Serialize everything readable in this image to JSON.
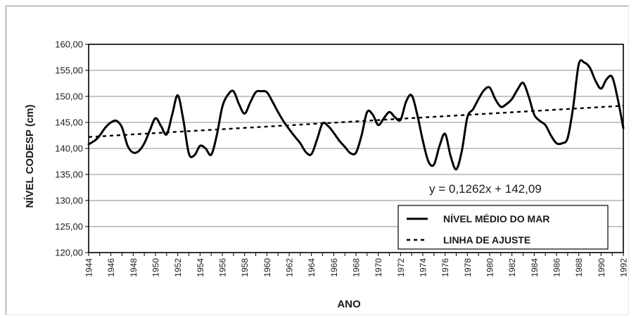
{
  "chart_data": {
    "type": "line",
    "title": "",
    "xlabel": "ANO",
    "ylabel": "NÍVEL CODESP  (cm)",
    "ylim": [
      120,
      160
    ],
    "xlim": [
      1944,
      1992
    ],
    "yticks": [
      "120,00",
      "125,00",
      "130,00",
      "135,00",
      "140,00",
      "145,00",
      "150,00",
      "155,00",
      "160,00"
    ],
    "xticks": [
      "1944",
      "1946",
      "1948",
      "1950",
      "1952",
      "1954",
      "1956",
      "1958",
      "1960",
      "1962",
      "1964",
      "1966",
      "1968",
      "1970",
      "1972",
      "1974",
      "1976",
      "1978",
      "1980",
      "1982",
      "1984",
      "1986",
      "1988",
      "1990",
      "1992"
    ],
    "grid": "horizontal",
    "legend_position": "bottom-right",
    "annotation": "y = 0,1262x + 142,09",
    "series": [
      {
        "name": "NÍVEL MÉDIO DO MAR",
        "style": "solid",
        "color": "#000000",
        "x": [
          1944,
          1944.6,
          1945,
          1945.5,
          1946,
          1946.5,
          1947,
          1947.5,
          1948,
          1948.5,
          1949,
          1949.5,
          1950,
          1950.5,
          1951,
          1951.5,
          1952,
          1952.5,
          1953,
          1953.5,
          1954,
          1954.5,
          1955,
          1955.5,
          1956,
          1956.5,
          1957,
          1957.5,
          1958,
          1958.5,
          1959,
          1959.5,
          1960,
          1960.5,
          1961,
          1961.5,
          1962,
          1962.5,
          1963,
          1963.5,
          1964,
          1964.5,
          1965,
          1965.5,
          1966,
          1966.5,
          1967,
          1967.5,
          1968,
          1968.5,
          1969,
          1969.5,
          1970,
          1970.5,
          1971,
          1971.5,
          1972,
          1972.5,
          1973,
          1973.5,
          1974,
          1974.5,
          1975,
          1975.5,
          1976,
          1976.5,
          1977,
          1977.5,
          1978,
          1978.5,
          1979,
          1979.5,
          1980,
          1980.5,
          1981,
          1981.5,
          1982,
          1982.5,
          1983,
          1983.5,
          1984,
          1984.5,
          1985,
          1985.5,
          1986,
          1986.5,
          1987,
          1987.5,
          1988,
          1988.5,
          1989,
          1989.5,
          1990,
          1990.5,
          1991,
          1991.5,
          1992
        ],
        "y": [
          140.8,
          141.6,
          142.5,
          144.0,
          145.0,
          145.3,
          144.0,
          140.5,
          139.2,
          139.5,
          141.0,
          143.5,
          145.8,
          144.3,
          142.7,
          146.5,
          150.2,
          145.5,
          139.0,
          138.7,
          140.5,
          140.0,
          138.8,
          142.5,
          148.0,
          150.3,
          151.0,
          148.5,
          146.7,
          148.8,
          150.8,
          151.0,
          150.8,
          149.0,
          147.0,
          145.2,
          143.7,
          142.3,
          141.0,
          139.3,
          138.9,
          141.7,
          144.8,
          144.3,
          143.0,
          141.5,
          140.3,
          139.1,
          139.2,
          142.5,
          147.0,
          146.5,
          144.5,
          145.8,
          147.0,
          146.0,
          145.5,
          149.0,
          150.2,
          146.5,
          141.5,
          137.5,
          136.9,
          140.5,
          142.8,
          138.5,
          136.0,
          139.5,
          146.0,
          147.5,
          149.5,
          151.2,
          151.7,
          149.5,
          148.0,
          148.5,
          149.5,
          151.3,
          152.6,
          150.0,
          146.5,
          145.3,
          144.5,
          142.5,
          141.0,
          141.0,
          142.0,
          148.0,
          156.2,
          156.5,
          155.5,
          153.0,
          151.5,
          153.3,
          153.7,
          149.5,
          143.9
        ]
      },
      {
        "name": "LINHA DE AJUSTE",
        "style": "dashed",
        "color": "#000000",
        "x": [
          1944,
          1992
        ],
        "y": [
          142.2,
          148.2
        ]
      }
    ]
  }
}
